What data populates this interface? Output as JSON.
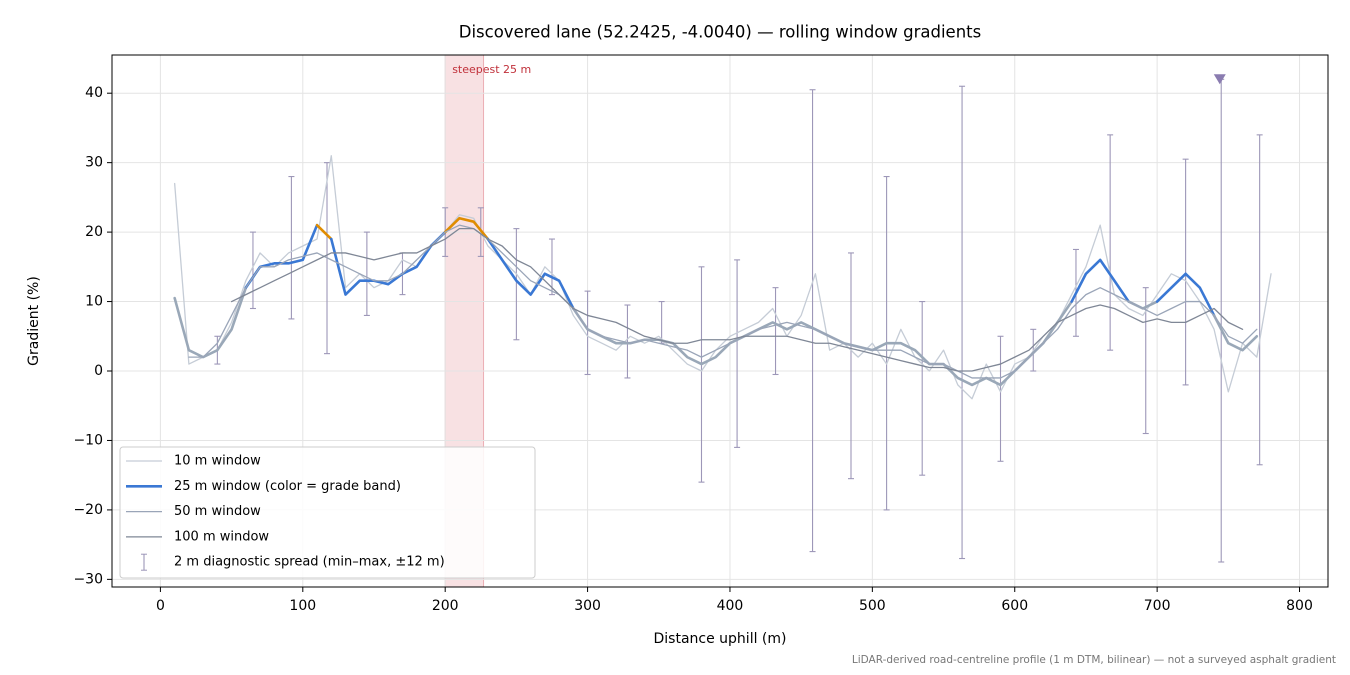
{
  "chart_data": {
    "type": "line",
    "title": "Discovered lane (52.2425, -4.0040) — rolling window gradients",
    "x_label": "Distance uphill (m)",
    "y_label": "Gradient (%)",
    "footnote": "LiDAR-derived road-centreline profile (1 m DTM, bilinear) — not a surveyed asphalt gradient",
    "xlim": [
      -34,
      820
    ],
    "ylim": [
      -31.1,
      45.5
    ],
    "xticks": [
      0,
      100,
      200,
      300,
      400,
      500,
      600,
      700,
      800
    ],
    "yticks": [
      {
        "value": -30,
        "label": "−30"
      },
      {
        "value": -20,
        "label": "−20"
      },
      {
        "value": -10,
        "label": "−10"
      },
      0,
      10,
      20,
      30,
      40
    ],
    "grid": true,
    "legend": "lower left",
    "x": [
      10,
      20,
      30,
      40,
      50,
      60,
      70,
      80,
      90,
      100,
      110,
      120,
      130,
      140,
      150,
      160,
      170,
      180,
      190,
      200,
      210,
      220,
      230,
      240,
      250,
      260,
      270,
      280,
      290,
      300,
      310,
      320,
      330,
      340,
      350,
      360,
      370,
      380,
      390,
      400,
      410,
      420,
      430,
      440,
      450,
      460,
      470,
      480,
      490,
      500,
      510,
      520,
      530,
      540,
      550,
      560,
      570,
      580,
      590,
      600,
      610,
      620,
      630,
      640,
      650,
      660,
      670,
      680,
      690,
      700,
      710,
      720,
      730,
      740,
      750,
      760,
      770,
      780
    ],
    "series": [
      {
        "name": "10 m window",
        "color": "#c5ccd6",
        "width": 1.3,
        "values": [
          27,
          1,
          2,
          3,
          7,
          13,
          17,
          15,
          17,
          18,
          19,
          31,
          12,
          14,
          12,
          13,
          16,
          15,
          18,
          20,
          22.5,
          22,
          18,
          16,
          14,
          11,
          15,
          13,
          8,
          5,
          4,
          3,
          5,
          4,
          5,
          3,
          1,
          0,
          3,
          5,
          6,
          7,
          9,
          5,
          8,
          14,
          3,
          4,
          2,
          4,
          1,
          6,
          2,
          0,
          3,
          -2,
          -4,
          1,
          -3,
          1,
          2,
          5,
          7,
          11,
          15,
          21,
          11,
          9,
          8,
          11,
          14,
          13,
          10,
          6,
          -3,
          4,
          2,
          14
        ]
      },
      {
        "name": "25 m window (color = grade band)",
        "color": "#3a78d4",
        "width": 2.6,
        "bands": {
          "thresholds": [
            10,
            20
          ],
          "colors": [
            "#9aa8b8",
            "#3a78d4",
            "#e08c00"
          ]
        },
        "values": [
          10.5,
          3,
          2,
          3,
          6,
          12,
          15,
          15.5,
          15.5,
          16,
          21,
          19,
          11,
          13,
          13,
          12.5,
          14,
          15,
          18,
          20,
          22,
          21.5,
          19,
          16,
          13,
          11,
          14,
          13,
          9,
          6,
          5,
          4,
          4,
          4.5,
          4.5,
          4,
          2,
          1,
          2,
          4,
          5,
          6,
          7,
          6,
          7,
          6,
          5,
          4,
          3.5,
          3,
          4,
          4,
          3,
          1,
          1,
          -1,
          -2,
          -1,
          -2,
          0,
          2,
          4,
          7,
          10,
          14,
          16,
          13,
          10,
          9,
          10,
          12,
          14,
          12,
          8,
          4,
          3,
          5,
          null
        ]
      },
      {
        "name": "50 m window",
        "color": "#9aa5b8",
        "width": 1.3,
        "values": [
          null,
          2,
          2,
          4,
          8,
          12,
          15,
          15,
          16,
          16.5,
          17,
          16,
          15,
          14,
          13,
          13,
          14,
          16,
          18,
          20,
          21,
          20.5,
          19,
          17,
          15,
          13,
          12,
          11,
          9,
          6,
          5,
          4.5,
          4,
          4.5,
          4,
          3.5,
          3,
          2,
          3,
          4,
          5,
          6,
          6.5,
          7,
          6.5,
          6,
          5,
          4,
          3.5,
          3,
          3,
          3,
          2,
          1,
          1,
          0,
          -1,
          -1,
          -1,
          0,
          2,
          4,
          6,
          9,
          11,
          12,
          11,
          10,
          9,
          8,
          9,
          10,
          10,
          8,
          5,
          4,
          6,
          null
        ]
      },
      {
        "name": "100 m window",
        "color": "#7f8796",
        "width": 1.3,
        "values": [
          null,
          null,
          null,
          null,
          10,
          11,
          12,
          13,
          14,
          15,
          16,
          17,
          17,
          16.5,
          16,
          16.5,
          17,
          17,
          18,
          19,
          20.5,
          20.5,
          19,
          18,
          16,
          15,
          13,
          11,
          9,
          8,
          7.5,
          7,
          6,
          5,
          4.5,
          4,
          4,
          4.5,
          4.5,
          4.5,
          5,
          5,
          5,
          5,
          4.5,
          4,
          4,
          3.5,
          3,
          2.5,
          2,
          1.5,
          1,
          0.5,
          0.5,
          0,
          0,
          0.5,
          1,
          2,
          3,
          5,
          7,
          8,
          9,
          9.5,
          9,
          8,
          7,
          7.5,
          7,
          7,
          8,
          9,
          7,
          6,
          null,
          null
        ]
      }
    ],
    "error_bars": {
      "name": "2 m diagnostic spread (min–max, ±12 m)",
      "color": "#9d97b8",
      "x": [
        40,
        65,
        92,
        117,
        145,
        170,
        200,
        225,
        250,
        275,
        300,
        328,
        352,
        380,
        405,
        432,
        458,
        485,
        510,
        535,
        563,
        590,
        613,
        643,
        667,
        692,
        720,
        745,
        772
      ],
      "low": [
        1,
        9,
        7.5,
        2.5,
        8,
        11,
        16.5,
        16.5,
        4.5,
        11,
        -0.5,
        -1,
        4,
        -16,
        -11,
        -0.5,
        -26,
        -15.5,
        -20,
        -15,
        -27,
        -13,
        0,
        5,
        3,
        -9,
        -2,
        -27.5,
        -13.5
      ],
      "high": [
        5,
        20,
        28,
        30,
        20,
        17,
        23.5,
        23.5,
        20.5,
        19,
        11.5,
        9.5,
        10,
        15,
        16,
        12,
        40.5,
        17,
        28,
        10,
        41,
        5,
        6,
        17.5,
        34,
        12,
        30.5,
        42,
        34
      ]
    },
    "marker": {
      "x": 744,
      "y": 42,
      "color": "#8a7cb0"
    },
    "highlight": {
      "x": [
        200,
        227
      ],
      "label": "steepest 25 m",
      "color": "#f2c4c8",
      "label_color": "#c0303a"
    }
  }
}
